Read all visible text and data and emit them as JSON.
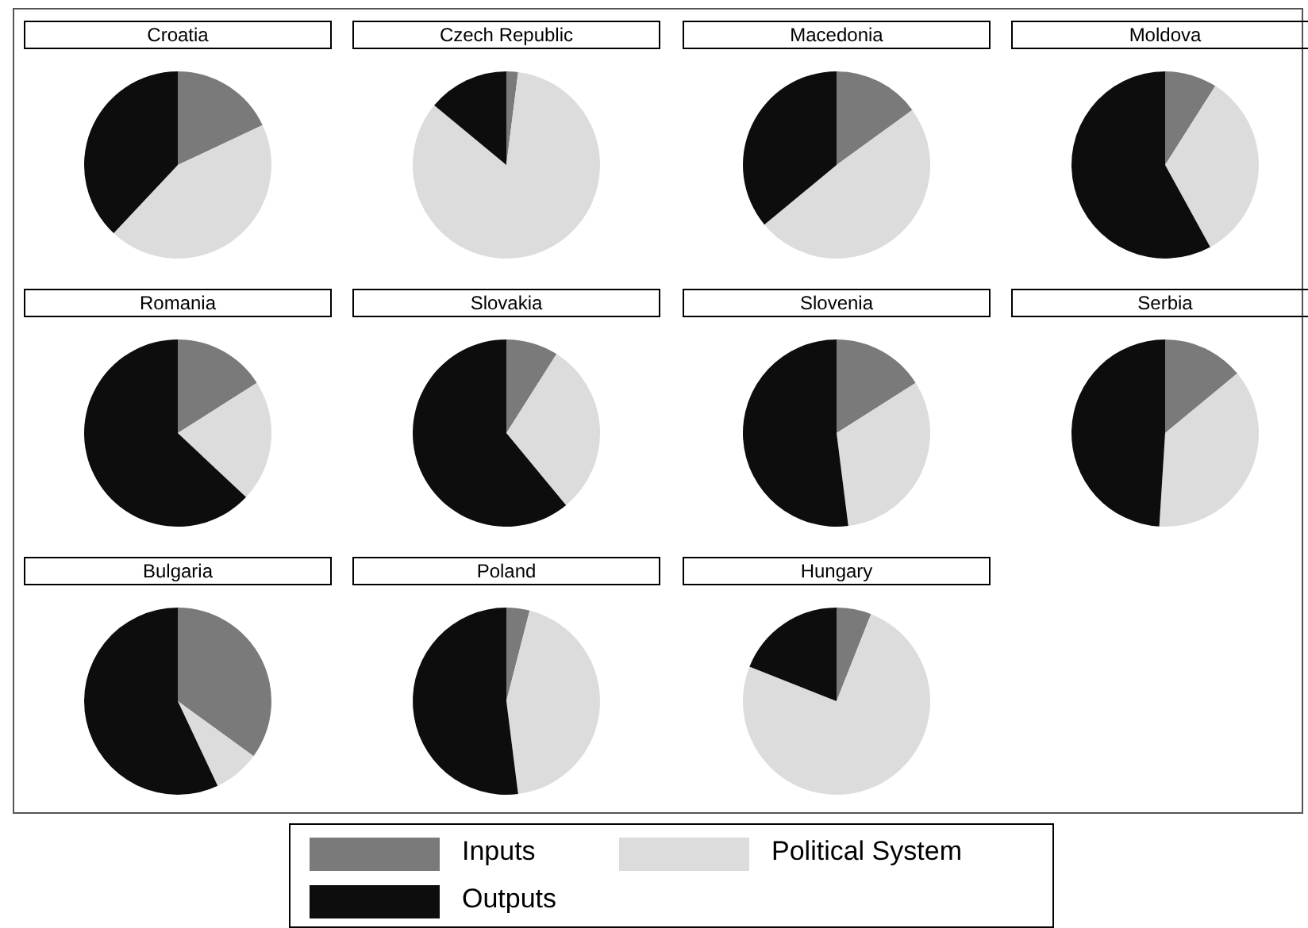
{
  "chart_data": [
    {
      "type": "pie",
      "title": "Croatia",
      "categories": [
        "Inputs",
        "Political System",
        "Outputs"
      ],
      "values": [
        18,
        44,
        38
      ],
      "colors": [
        "#7a7a7a",
        "#dcdcdc",
        "#0d0d0d"
      ],
      "legend": "bottom"
    },
    {
      "type": "pie",
      "title": "Czech Republic",
      "categories": [
        null,
        null,
        null
      ],
      "values": [
        2,
        84,
        14
      ],
      "colors": [
        "#7a7a7a",
        "#dcdcdc",
        "#0d0d0d"
      ]
    },
    {
      "type": "pie",
      "title": "Macedonia",
      "categories": [
        null,
        null,
        null
      ],
      "values": [
        15,
        49,
        36
      ],
      "colors": [
        "#7a7a7a",
        "#dcdcdc",
        "#0d0d0d"
      ]
    },
    {
      "type": "pie",
      "title": "Moldova",
      "categories": [
        null,
        null,
        null
      ],
      "values": [
        9,
        33,
        58
      ],
      "colors": [
        "#7a7a7a",
        "#dcdcdc",
        "#0d0d0d"
      ]
    },
    {
      "type": "pie",
      "title": "Romania",
      "categories": [
        null,
        null,
        null
      ],
      "values": [
        16,
        21,
        63
      ],
      "colors": [
        "#7a7a7a",
        "#dcdcdc",
        "#0d0d0d"
      ]
    },
    {
      "type": "pie",
      "title": "Slovakia",
      "categories": [
        null,
        null,
        null
      ],
      "values": [
        9,
        30,
        61
      ],
      "colors": [
        "#7a7a7a",
        "#dcdcdc",
        "#0d0d0d"
      ]
    },
    {
      "type": "pie",
      "title": "Slovenia",
      "categories": [
        null,
        null,
        null
      ],
      "values": [
        16,
        32,
        52
      ],
      "colors": [
        "#7a7a7a",
        "#dcdcdc",
        "#0d0d0d"
      ]
    },
    {
      "type": "pie",
      "title": "Serbia",
      "categories": [
        null,
        null,
        null
      ],
      "values": [
        14,
        37,
        49
      ],
      "colors": [
        "#7a7a7a",
        "#dcdcdc",
        "#0d0d0d"
      ]
    },
    {
      "type": "pie",
      "title": "Bulgaria",
      "categories": [
        null,
        null,
        null
      ],
      "values": [
        35,
        8,
        57
      ],
      "colors": [
        "#7a7a7a",
        "#dcdcdc",
        "#0d0d0d"
      ]
    },
    {
      "type": "pie",
      "title": "Poland",
      "categories": [
        null,
        null,
        null
      ],
      "values": [
        4,
        44,
        52
      ],
      "colors": [
        "#7a7a7a",
        "#dcdcdc",
        "#0d0d0d"
      ]
    },
    {
      "type": "pie",
      "title": "Hungary",
      "categories": [
        null,
        null,
        null
      ],
      "values": [
        6,
        75,
        19
      ],
      "colors": [
        "#7a7a7a",
        "#dcdcdc",
        "#0d0d0d"
      ]
    }
  ]
}
